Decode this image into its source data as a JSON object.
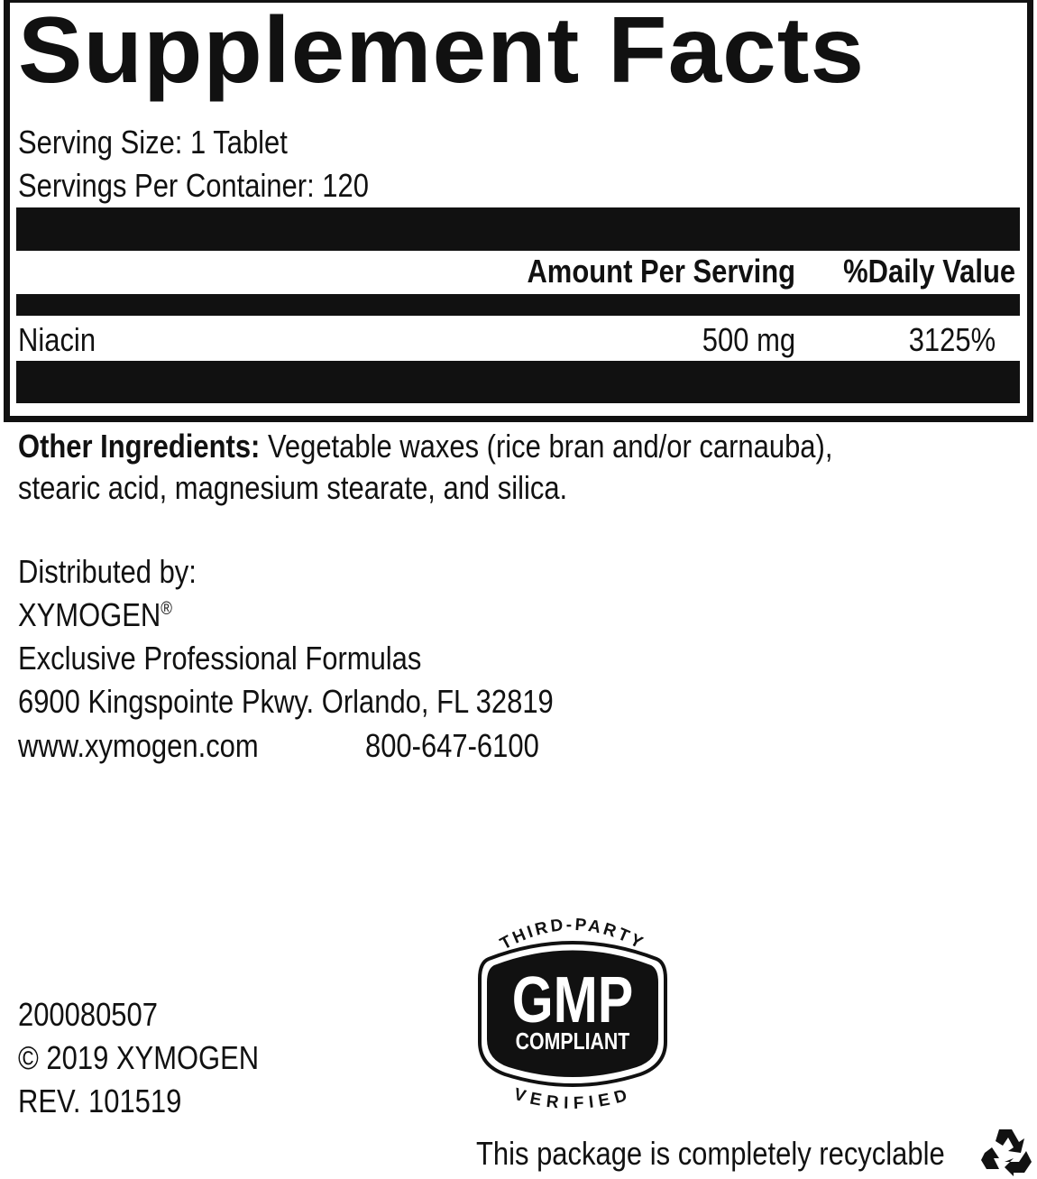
{
  "panel": {
    "title": "Supplement Facts",
    "serving_size": "Serving Size: 1 Tablet",
    "servings_per_container": "Servings Per Container: 120",
    "columns": {
      "amount": "Amount Per Serving",
      "daily_value": "%Daily Value"
    },
    "rows": [
      {
        "name": "Niacin",
        "amount": "500 mg",
        "daily_value": "3125%"
      }
    ]
  },
  "other_ingredients": {
    "label": "Other Ingredients:",
    "line1": "Vegetable waxes (rice bran and/or carnauba),",
    "line2": "stearic acid, magnesium stearate, and silica."
  },
  "distributor": {
    "label": "Distributed by:",
    "name": "XYMOGEN",
    "registered": "®",
    "tagline": "Exclusive Professional Formulas",
    "address": "6900 Kingspointe Pkwy. Orlando, FL 32819",
    "website": "www.xymogen.com",
    "phone": "800-647-6100"
  },
  "footer": {
    "code": "200080507",
    "copyright": "© 2019 XYMOGEN",
    "revision": "REV. 101519",
    "recyclable": "This package is completely recyclable",
    "recycle_icon": "recycle-icon"
  },
  "badge": {
    "top": "THIRD-PARTY",
    "main": "GMP",
    "sub": "COMPLIANT",
    "bottom": "VERIFIED"
  }
}
